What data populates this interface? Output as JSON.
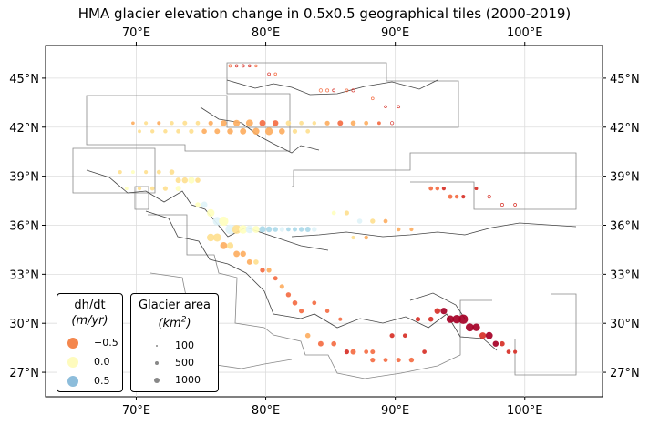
{
  "title": "HMA glacier elevation change in 0.5x0.5 geographical tiles (2000-2019)",
  "axes": {
    "x_ticks": [
      "70°E",
      "80°E",
      "90°E",
      "100°E"
    ],
    "y_ticks": [
      "45°N",
      "42°N",
      "39°N",
      "36°N",
      "33°N",
      "30°N",
      "27°N"
    ]
  },
  "legend_dhdt": {
    "title": "dh/dt",
    "unit": "(m/yr)",
    "entries": [
      {
        "label": "−0.5",
        "value": -0.5,
        "color": "#f4874e"
      },
      {
        "label": "0.0",
        "value": 0.0,
        "color": "#fefbbd"
      },
      {
        "label": "0.5",
        "value": 0.5,
        "color": "#8dbddb"
      }
    ]
  },
  "legend_area": {
    "title": "Glacier area",
    "unit_base": "(km",
    "unit_exp": "2",
    "unit_close": ")",
    "entries": [
      {
        "label": "100",
        "value": 100
      },
      {
        "label": "500",
        "value": 500
      },
      {
        "label": "1000",
        "value": 1000
      }
    ]
  },
  "colors": {
    "strong_loss": "#a50026",
    "loss": "#d73027",
    "moderate_loss": "#f46d43",
    "slight_loss": "#fdae61",
    "near_zero": "#fee090",
    "stable": "#ffffbf",
    "gain": "#e0f3f8",
    "strong_gain": "#abd9e9",
    "boundary": "#888888"
  },
  "chart_data": {
    "type": "scatter",
    "title": "HMA glacier elevation change in 0.5x0.5 geographical tiles (2000-2019)",
    "xlim": [
      63.0,
      106.0
    ],
    "ylim": [
      25.5,
      47.0
    ],
    "x_unit": "°E",
    "y_unit": "°N",
    "grid": true,
    "legend_placement": "lower-left",
    "tile_size_deg": 0.5,
    "encoding": {
      "color": "dh/dt (m/yr)",
      "size": "Glacier area (km²)"
    },
    "tiles": [
      [
        77.25,
        45.75,
        -0.6,
        10
      ],
      [
        77.75,
        45.75,
        -0.8,
        8
      ],
      [
        78.25,
        45.75,
        -0.9,
        12
      ],
      [
        78.75,
        45.75,
        -1.0,
        6
      ],
      [
        79.25,
        45.75,
        -0.5,
        5
      ],
      [
        80.25,
        45.25,
        -0.9,
        9
      ],
      [
        80.75,
        45.25,
        -0.6,
        6
      ],
      [
        84.25,
        44.25,
        -0.7,
        20
      ],
      [
        84.75,
        44.25,
        -0.6,
        15
      ],
      [
        85.25,
        44.25,
        -0.8,
        10
      ],
      [
        86.25,
        44.25,
        -0.7,
        12
      ],
      [
        86.75,
        44.25,
        -0.9,
        15
      ],
      [
        88.25,
        43.75,
        -0.5,
        8
      ],
      [
        89.25,
        43.25,
        -1.0,
        6
      ],
      [
        90.25,
        43.25,
        -0.8,
        10
      ],
      [
        69.75,
        42.25,
        -0.3,
        25
      ],
      [
        70.75,
        42.25,
        -0.2,
        40
      ],
      [
        71.75,
        42.25,
        -0.3,
        35
      ],
      [
        72.75,
        42.25,
        -0.2,
        50
      ],
      [
        73.75,
        42.25,
        -0.1,
        70
      ],
      [
        74.75,
        42.25,
        -0.2,
        60
      ],
      [
        75.75,
        42.25,
        -0.3,
        80
      ],
      [
        76.75,
        42.25,
        -0.4,
        150
      ],
      [
        77.75,
        42.25,
        -0.3,
        200
      ],
      [
        78.75,
        42.25,
        -0.4,
        250
      ],
      [
        79.75,
        42.25,
        -0.6,
        180
      ],
      [
        80.75,
        42.25,
        -0.5,
        150
      ],
      [
        81.75,
        42.25,
        -0.2,
        100
      ],
      [
        82.75,
        42.25,
        -0.1,
        60
      ],
      [
        83.75,
        42.25,
        -0.2,
        50
      ],
      [
        84.75,
        42.25,
        -0.3,
        80
      ],
      [
        85.75,
        42.25,
        -0.5,
        120
      ],
      [
        86.75,
        42.25,
        -0.4,
        100
      ],
      [
        87.75,
        42.25,
        -0.3,
        60
      ],
      [
        88.75,
        42.25,
        -0.6,
        30
      ],
      [
        89.75,
        42.25,
        -0.8,
        20
      ],
      [
        70.25,
        41.75,
        -0.2,
        30
      ],
      [
        71.25,
        41.75,
        -0.1,
        45
      ],
      [
        72.25,
        41.75,
        -0.2,
        50
      ],
      [
        73.25,
        41.75,
        -0.2,
        60
      ],
      [
        74.25,
        41.75,
        -0.2,
        80
      ],
      [
        75.25,
        41.75,
        -0.3,
        100
      ],
      [
        76.25,
        41.75,
        -0.4,
        120
      ],
      [
        77.25,
        41.75,
        -0.4,
        150
      ],
      [
        78.25,
        41.75,
        -0.3,
        180
      ],
      [
        79.25,
        41.75,
        -0.3,
        220
      ],
      [
        80.25,
        41.75,
        -0.4,
        300
      ],
      [
        81.25,
        41.75,
        -0.3,
        160
      ],
      [
        82.25,
        41.75,
        -0.2,
        80
      ],
      [
        83.25,
        41.75,
        -0.2,
        60
      ],
      [
        68.75,
        39.25,
        -0.1,
        40
      ],
      [
        69.75,
        39.25,
        0.0,
        30
      ],
      [
        70.75,
        39.25,
        -0.1,
        40
      ],
      [
        71.75,
        39.25,
        -0.2,
        60
      ],
      [
        72.75,
        39.25,
        -0.1,
        100
      ],
      [
        73.25,
        38.75,
        -0.2,
        120
      ],
      [
        73.75,
        38.75,
        -0.1,
        150
      ],
      [
        74.25,
        38.75,
        0.0,
        200
      ],
      [
        74.75,
        38.75,
        -0.1,
        100
      ],
      [
        69.25,
        38.25,
        0.0,
        30
      ],
      [
        70.25,
        38.25,
        -0.1,
        40
      ],
      [
        71.25,
        38.25,
        -0.2,
        60
      ],
      [
        72.25,
        38.25,
        -0.1,
        80
      ],
      [
        73.25,
        38.25,
        0.0,
        120
      ],
      [
        74.75,
        37.25,
        0.0,
        100
      ],
      [
        75.25,
        37.25,
        0.1,
        180
      ],
      [
        75.75,
        36.75,
        0.0,
        300
      ],
      [
        76.25,
        36.25,
        0.1,
        400
      ],
      [
        76.75,
        36.25,
        0.0,
        500
      ],
      [
        77.25,
        35.75,
        0.1,
        600
      ],
      [
        77.75,
        35.75,
        -0.1,
        450
      ],
      [
        78.25,
        35.75,
        0.0,
        400
      ],
      [
        78.75,
        35.75,
        0.1,
        300
      ],
      [
        79.25,
        35.75,
        0.0,
        250
      ],
      [
        79.75,
        35.75,
        0.2,
        200
      ],
      [
        80.25,
        35.75,
        0.2,
        150
      ],
      [
        80.75,
        35.75,
        0.2,
        100
      ],
      [
        81.25,
        35.75,
        0.1,
        80
      ],
      [
        81.75,
        35.75,
        0.2,
        60
      ],
      [
        82.25,
        35.75,
        0.3,
        70
      ],
      [
        82.75,
        35.75,
        0.2,
        90
      ],
      [
        83.25,
        35.75,
        0.2,
        120
      ],
      [
        83.75,
        35.75,
        0.1,
        100
      ],
      [
        75.75,
        35.25,
        -0.1,
        300
      ],
      [
        76.25,
        35.25,
        -0.2,
        350
      ],
      [
        76.75,
        34.75,
        -0.3,
        250
      ],
      [
        77.25,
        34.75,
        -0.2,
        200
      ],
      [
        77.75,
        34.25,
        -0.3,
        180
      ],
      [
        78.25,
        34.25,
        -0.4,
        150
      ],
      [
        78.75,
        33.75,
        -0.3,
        120
      ],
      [
        79.25,
        33.75,
        -0.2,
        100
      ],
      [
        79.75,
        33.25,
        -0.5,
        90
      ],
      [
        80.25,
        33.25,
        -0.4,
        80
      ],
      [
        80.75,
        32.75,
        -0.5,
        70
      ],
      [
        81.25,
        32.25,
        -0.4,
        80
      ],
      [
        81.75,
        31.75,
        -0.5,
        90
      ],
      [
        82.25,
        31.25,
        -0.6,
        100
      ],
      [
        82.75,
        30.75,
        -0.5,
        80
      ],
      [
        85.25,
        36.75,
        0.0,
        60
      ],
      [
        86.25,
        36.75,
        -0.1,
        80
      ],
      [
        87.25,
        36.25,
        0.1,
        100
      ],
      [
        88.25,
        36.25,
        -0.2,
        90
      ],
      [
        89.25,
        36.25,
        -0.3,
        60
      ],
      [
        90.25,
        35.75,
        -0.4,
        50
      ],
      [
        91.25,
        35.75,
        -0.3,
        40
      ],
      [
        86.75,
        35.25,
        -0.2,
        40
      ],
      [
        87.75,
        35.25,
        -0.3,
        50
      ],
      [
        83.75,
        31.25,
        -0.5,
        60
      ],
      [
        84.75,
        30.75,
        -0.6,
        50
      ],
      [
        85.75,
        30.25,
        -0.7,
        40
      ],
      [
        86.25,
        28.25,
        -0.8,
        80
      ],
      [
        86.75,
        28.25,
        -0.6,
        120
      ],
      [
        87.75,
        28.25,
        -0.5,
        60
      ],
      [
        88.25,
        28.25,
        -0.7,
        70
      ],
      [
        89.75,
        29.25,
        -0.9,
        80
      ],
      [
        90.75,
        29.25,
        -0.8,
        60
      ],
      [
        91.75,
        30.25,
        -0.9,
        80
      ],
      [
        92.75,
        30.25,
        -1.0,
        100
      ],
      [
        93.25,
        30.75,
        -1.2,
        150
      ],
      [
        93.75,
        30.75,
        -1.4,
        200
      ],
      [
        94.25,
        30.25,
        -1.5,
        300
      ],
      [
        94.75,
        30.25,
        -1.3,
        400
      ],
      [
        95.25,
        30.25,
        -1.6,
        500
      ],
      [
        95.75,
        29.75,
        -1.4,
        350
      ],
      [
        96.25,
        29.75,
        -1.6,
        300
      ],
      [
        96.75,
        29.25,
        -1.2,
        200
      ],
      [
        97.25,
        29.25,
        -1.5,
        250
      ],
      [
        97.75,
        28.75,
        -1.3,
        150
      ],
      [
        98.25,
        28.75,
        -1.1,
        100
      ],
      [
        98.75,
        28.25,
        -0.9,
        60
      ],
      [
        99.25,
        28.25,
        -1.0,
        40
      ],
      [
        92.75,
        38.25,
        -0.6,
        60
      ],
      [
        93.25,
        38.25,
        -0.7,
        50
      ],
      [
        93.75,
        38.25,
        -0.8,
        40
      ],
      [
        94.25,
        37.75,
        -0.6,
        70
      ],
      [
        94.75,
        37.75,
        -0.7,
        50
      ],
      [
        95.25,
        37.75,
        -0.9,
        40
      ],
      [
        96.25,
        38.25,
        -1.0,
        30
      ],
      [
        97.25,
        37.75,
        -0.8,
        20
      ],
      [
        98.25,
        37.25,
        -0.9,
        15
      ],
      [
        99.25,
        37.25,
        -0.8,
        10
      ],
      [
        88.25,
        27.75,
        -0.7,
        80
      ],
      [
        89.25,
        27.75,
        -0.6,
        60
      ],
      [
        90.25,
        27.75,
        -0.7,
        70
      ],
      [
        91.25,
        27.75,
        -0.6,
        90
      ],
      [
        92.25,
        28.25,
        -0.8,
        60
      ],
      [
        85.25,
        28.75,
        -0.5,
        100
      ],
      [
        84.25,
        28.75,
        -0.6,
        120
      ],
      [
        83.25,
        29.25,
        -0.4,
        100
      ]
    ]
  }
}
